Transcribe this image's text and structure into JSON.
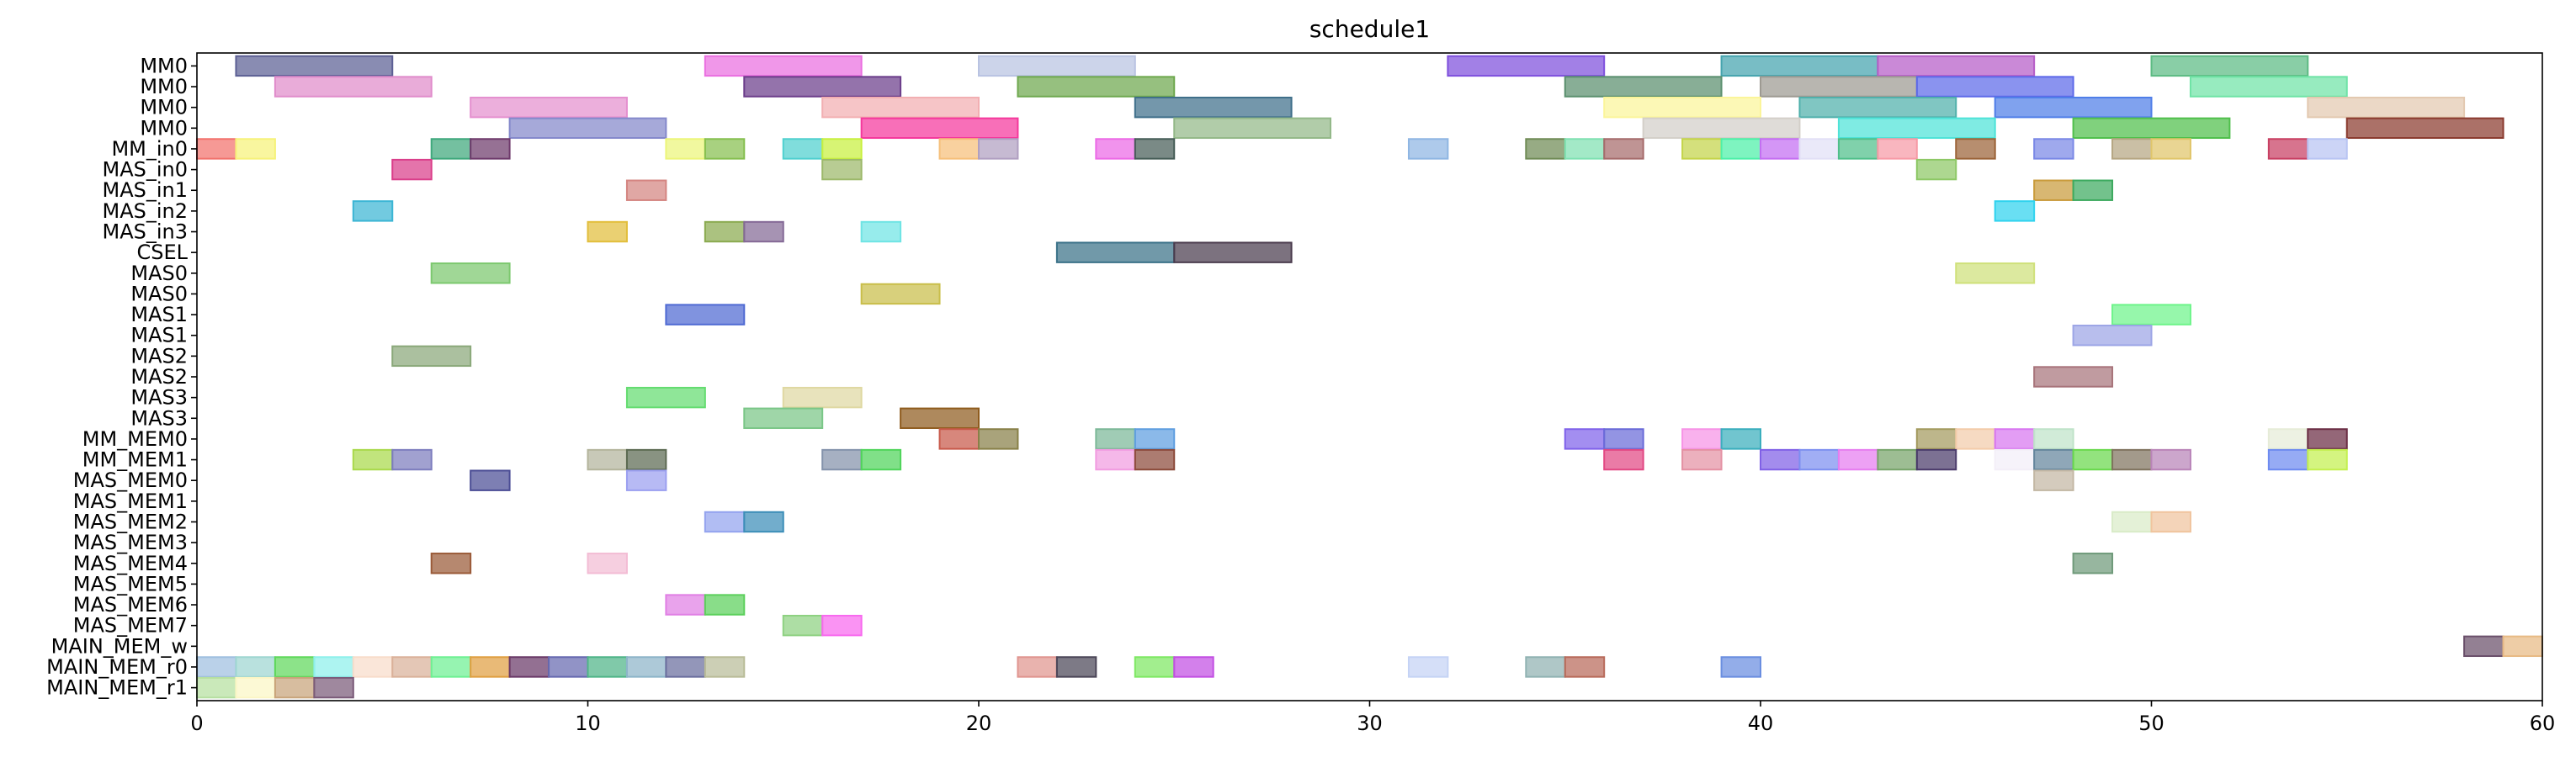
{
  "chart_data": {
    "type": "gantt",
    "title": "schedule1",
    "xlim": [
      0,
      60
    ],
    "xticks": [
      0,
      10,
      20,
      30,
      40,
      50,
      60
    ],
    "grid": false,
    "rows": [
      "MM0",
      "MM0",
      "MM0",
      "MM0",
      "MM_in0",
      "MAS_in0",
      "MAS_in1",
      "MAS_in2",
      "MAS_in3",
      "CSEL",
      "MAS0",
      "MAS0",
      "MAS1",
      "MAS1",
      "MAS2",
      "MAS2",
      "MAS3",
      "MAS3",
      "MM_MEM0",
      "MM_MEM1",
      "MAS_MEM0",
      "MAS_MEM1",
      "MAS_MEM2",
      "MAS_MEM3",
      "MAS_MEM4",
      "MAS_MEM5",
      "MAS_MEM6",
      "MAS_MEM7",
      "MAIN_MEM_w",
      "MAIN_MEM_r0",
      "MAIN_MEM_r1"
    ],
    "tasks": [
      {
        "row": 0,
        "start": 1,
        "end": 5,
        "color": "#5c5f94"
      },
      {
        "row": 0,
        "start": 13,
        "end": 17,
        "color": "#ea6fe0"
      },
      {
        "row": 0,
        "start": 20,
        "end": 24,
        "color": "#b9c3e2"
      },
      {
        "row": 0,
        "start": 32,
        "end": 36,
        "color": "#7e4fdd"
      },
      {
        "row": 0,
        "start": 39,
        "end": 43,
        "color": "#44a4ae"
      },
      {
        "row": 0,
        "start": 43,
        "end": 47,
        "color": "#b65cc7"
      },
      {
        "row": 0,
        "start": 50,
        "end": 54,
        "color": "#5cbb83"
      },
      {
        "row": 1,
        "start": 2,
        "end": 6,
        "color": "#e08ccb"
      },
      {
        "row": 1,
        "start": 14,
        "end": 18,
        "color": "#6b3d8a"
      },
      {
        "row": 1,
        "start": 21,
        "end": 25,
        "color": "#6ea84e"
      },
      {
        "row": 1,
        "start": 35,
        "end": 39,
        "color": "#5a8f6e"
      },
      {
        "row": 1,
        "start": 40,
        "end": 44,
        "color": "#9d9a92"
      },
      {
        "row": 1,
        "start": 44,
        "end": 48,
        "color": "#5d69e9"
      },
      {
        "row": 1,
        "start": 51,
        "end": 55,
        "color": "#6fe3a6"
      },
      {
        "row": 2,
        "start": 7,
        "end": 11,
        "color": "#e590cf"
      },
      {
        "row": 2,
        "start": 16,
        "end": 20,
        "color": "#f2afb2"
      },
      {
        "row": 2,
        "start": 24,
        "end": 28,
        "color": "#3f6f8a"
      },
      {
        "row": 2,
        "start": 36,
        "end": 40,
        "color": "#fbf59a"
      },
      {
        "row": 2,
        "start": 41,
        "end": 45,
        "color": "#4fb0ab"
      },
      {
        "row": 2,
        "start": 46,
        "end": 50,
        "color": "#4f7ee8"
      },
      {
        "row": 2,
        "start": 54,
        "end": 58,
        "color": "#e3c9b0"
      },
      {
        "row": 3,
        "start": 8,
        "end": 12,
        "color": "#8488cb"
      },
      {
        "row": 3,
        "start": 17,
        "end": 21,
        "color": "#f5389c"
      },
      {
        "row": 3,
        "start": 25,
        "end": 29,
        "color": "#93b888"
      },
      {
        "row": 3,
        "start": 37,
        "end": 41,
        "color": "#d3cfc9"
      },
      {
        "row": 3,
        "start": 42,
        "end": 46,
        "color": "#4ee3d8"
      },
      {
        "row": 3,
        "start": 48,
        "end": 52,
        "color": "#4fbf4b"
      },
      {
        "row": 3,
        "start": 55,
        "end": 59,
        "color": "#8a3a2e"
      },
      {
        "row": 4,
        "start": 0,
        "end": 1,
        "color": "#f2726c"
      },
      {
        "row": 4,
        "start": 1,
        "end": 2,
        "color": "#f6f27a"
      },
      {
        "row": 4,
        "start": 6,
        "end": 7,
        "color": "#3ea87c"
      },
      {
        "row": 4,
        "start": 7,
        "end": 8,
        "color": "#6e3a6b"
      },
      {
        "row": 4,
        "start": 12,
        "end": 13,
        "color": "#ecf57a"
      },
      {
        "row": 4,
        "start": 13,
        "end": 14,
        "color": "#86bf4f"
      },
      {
        "row": 4,
        "start": 15,
        "end": 16,
        "color": "#4fd0cf"
      },
      {
        "row": 4,
        "start": 16,
        "end": 17,
        "color": "#c8f03f"
      },
      {
        "row": 4,
        "start": 19,
        "end": 20,
        "color": "#f6bf7a"
      },
      {
        "row": 4,
        "start": 20,
        "end": 21,
        "color": "#b09fc1"
      },
      {
        "row": 4,
        "start": 23,
        "end": 24,
        "color": "#ec6ae6"
      },
      {
        "row": 4,
        "start": 24,
        "end": 25,
        "color": "#465d57"
      },
      {
        "row": 4,
        "start": 31,
        "end": 32,
        "color": "#8fb6e3"
      },
      {
        "row": 4,
        "start": 34,
        "end": 35,
        "color": "#6f8b55"
      },
      {
        "row": 4,
        "start": 35,
        "end": 36,
        "color": "#7fe1b1"
      },
      {
        "row": 4,
        "start": 36,
        "end": 37,
        "color": "#a66b6b"
      },
      {
        "row": 4,
        "start": 38,
        "end": 39,
        "color": "#c4d449"
      },
      {
        "row": 4,
        "start": 39,
        "end": 40,
        "color": "#4cf0a8"
      },
      {
        "row": 4,
        "start": 40,
        "end": 41,
        "color": "#c46ef2"
      },
      {
        "row": 4,
        "start": 41,
        "end": 42,
        "color": "#e2e0f6"
      },
      {
        "row": 4,
        "start": 42,
        "end": 43,
        "color": "#4fbf8a"
      },
      {
        "row": 4,
        "start": 43,
        "end": 44,
        "color": "#f79aa6"
      },
      {
        "row": 4,
        "start": 45,
        "end": 46,
        "color": "#9b6338"
      },
      {
        "row": 4,
        "start": 47,
        "end": 48,
        "color": "#7a88e6"
      },
      {
        "row": 4,
        "start": 49,
        "end": 50,
        "color": "#b5a682"
      },
      {
        "row": 4,
        "start": 50,
        "end": 51,
        "color": "#e0c56a"
      },
      {
        "row": 4,
        "start": 53,
        "end": 54,
        "color": "#c83f62"
      },
      {
        "row": 4,
        "start": 54,
        "end": 55,
        "color": "#b8c4f3"
      },
      {
        "row": 5,
        "start": 5,
        "end": 6,
        "color": "#da3e8a"
      },
      {
        "row": 5,
        "start": 16,
        "end": 17,
        "color": "#9cb86a"
      },
      {
        "row": 5,
        "start": 44,
        "end": 45,
        "color": "#8dc865"
      },
      {
        "row": 6,
        "start": 11,
        "end": 12,
        "color": "#d48581"
      },
      {
        "row": 6,
        "start": 47,
        "end": 48,
        "color": "#c99b3b"
      },
      {
        "row": 6,
        "start": 48,
        "end": 49,
        "color": "#3daa5f"
      },
      {
        "row": 7,
        "start": 4,
        "end": 5,
        "color": "#3bb5d4"
      },
      {
        "row": 7,
        "start": 46,
        "end": 47,
        "color": "#2fd2ee"
      },
      {
        "row": 8,
        "start": 10,
        "end": 11,
        "color": "#e2be3b"
      },
      {
        "row": 8,
        "start": 13,
        "end": 14,
        "color": "#8aaa4f"
      },
      {
        "row": 8,
        "start": 14,
        "end": 15,
        "color": "#846996"
      },
      {
        "row": 8,
        "start": 17,
        "end": 18,
        "color": "#6fe4e4"
      },
      {
        "row": 9,
        "start": 22,
        "end": 25,
        "color": "#3a7188"
      },
      {
        "row": 9,
        "start": 25,
        "end": 28,
        "color": "#4a3b4d"
      },
      {
        "row": 10,
        "start": 6,
        "end": 8,
        "color": "#7cc86e"
      },
      {
        "row": 10,
        "start": 45,
        "end": 47,
        "color": "#cfe07a"
      },
      {
        "row": 11,
        "start": 17,
        "end": 19,
        "color": "#c9be4a"
      },
      {
        "row": 12,
        "start": 12,
        "end": 14,
        "color": "#4f6ad3"
      },
      {
        "row": 12,
        "start": 49,
        "end": 51,
        "color": "#6ef48a"
      },
      {
        "row": 13,
        "start": 48,
        "end": 50,
        "color": "#9ca5e6"
      },
      {
        "row": 14,
        "start": 5,
        "end": 7,
        "color": "#8aa87a"
      },
      {
        "row": 15,
        "start": 47,
        "end": 49,
        "color": "#a8747b"
      },
      {
        "row": 16,
        "start": 11,
        "end": 13,
        "color": "#64dc70"
      },
      {
        "row": 16,
        "start": 15,
        "end": 17,
        "color": "#dfd8a2"
      },
      {
        "row": 17,
        "start": 14,
        "end": 16,
        "color": "#7ac687"
      },
      {
        "row": 17,
        "start": 18,
        "end": 20,
        "color": "#8f5c1e"
      },
      {
        "row": 18,
        "start": 19,
        "end": 20,
        "color": "#c8594a"
      },
      {
        "row": 18,
        "start": 20,
        "end": 21,
        "color": "#888048"
      },
      {
        "row": 18,
        "start": 23,
        "end": 24,
        "color": "#7cb898"
      },
      {
        "row": 18,
        "start": 24,
        "end": 25,
        "color": "#5e9ee0"
      },
      {
        "row": 18,
        "start": 35,
        "end": 36,
        "color": "#8062ea"
      },
      {
        "row": 18,
        "start": 36,
        "end": 37,
        "color": "#6a6bd8"
      },
      {
        "row": 18,
        "start": 38,
        "end": 39,
        "color": "#f793e6"
      },
      {
        "row": 18,
        "start": 39,
        "end": 40,
        "color": "#3aaebd"
      },
      {
        "row": 18,
        "start": 44,
        "end": 45,
        "color": "#a39a5e"
      },
      {
        "row": 18,
        "start": 45,
        "end": 46,
        "color": "#f3ccaa"
      },
      {
        "row": 18,
        "start": 46,
        "end": 47,
        "color": "#d877f0"
      },
      {
        "row": 18,
        "start": 47,
        "end": 48,
        "color": "#bfe3c9"
      },
      {
        "row": 18,
        "start": 53,
        "end": 54,
        "color": "#e6ecd8"
      },
      {
        "row": 18,
        "start": 54,
        "end": 55,
        "color": "#6b2d44"
      },
      {
        "row": 19,
        "start": 4,
        "end": 5,
        "color": "#a9d94b"
      },
      {
        "row": 19,
        "start": 5,
        "end": 6,
        "color": "#7d7dbe"
      },
      {
        "row": 19,
        "start": 10,
        "end": 11,
        "color": "#b3b49c"
      },
      {
        "row": 19,
        "start": 11,
        "end": 12,
        "color": "#5c6a52"
      },
      {
        "row": 19,
        "start": 16,
        "end": 17,
        "color": "#8392ab"
      },
      {
        "row": 19,
        "start": 17,
        "end": 18,
        "color": "#4fd45a"
      },
      {
        "row": 19,
        "start": 23,
        "end": 24,
        "color": "#f19ce0"
      },
      {
        "row": 19,
        "start": 24,
        "end": 25,
        "color": "#8c4a3a"
      },
      {
        "row": 19,
        "start": 36,
        "end": 37,
        "color": "#e24883"
      },
      {
        "row": 19,
        "start": 38,
        "end": 39,
        "color": "#e491a3"
      },
      {
        "row": 19,
        "start": 40,
        "end": 41,
        "color": "#8060e6"
      },
      {
        "row": 19,
        "start": 41,
        "end": 42,
        "color": "#7d8ff0"
      },
      {
        "row": 19,
        "start": 42,
        "end": 43,
        "color": "#e67df0"
      },
      {
        "row": 19,
        "start": 43,
        "end": 44,
        "color": "#77a46a"
      },
      {
        "row": 19,
        "start": 44,
        "end": 45,
        "color": "#4a3a6a"
      },
      {
        "row": 19,
        "start": 46,
        "end": 47,
        "color": "#f3eff8"
      },
      {
        "row": 19,
        "start": 47,
        "end": 48,
        "color": "#64859c"
      },
      {
        "row": 19,
        "start": 48,
        "end": 49,
        "color": "#69d84c"
      },
      {
        "row": 19,
        "start": 49,
        "end": 50,
        "color": "#7f735e"
      },
      {
        "row": 19,
        "start": 50,
        "end": 51,
        "color": "#b984b8"
      },
      {
        "row": 19,
        "start": 53,
        "end": 54,
        "color": "#6d8af0"
      },
      {
        "row": 19,
        "start": 54,
        "end": 55,
        "color": "#c3f04f"
      },
      {
        "row": 20,
        "start": 7,
        "end": 8,
        "color": "#4b4d95"
      },
      {
        "row": 20,
        "start": 11,
        "end": 12,
        "color": "#9b9ff0"
      },
      {
        "row": 20,
        "start": 47,
        "end": 48,
        "color": "#c3b7a4"
      },
      {
        "row": 22,
        "start": 13,
        "end": 14,
        "color": "#93a3ee"
      },
      {
        "row": 22,
        "start": 14,
        "end": 15,
        "color": "#3c8eb8"
      },
      {
        "row": 22,
        "start": 49,
        "end": 50,
        "color": "#d9ebc8"
      },
      {
        "row": 22,
        "start": 50,
        "end": 51,
        "color": "#f0c49e"
      },
      {
        "row": 24,
        "start": 6,
        "end": 7,
        "color": "#9a5a38"
      },
      {
        "row": 24,
        "start": 10,
        "end": 11,
        "color": "#f3bcd4"
      },
      {
        "row": 24,
        "start": 48,
        "end": 49,
        "color": "#6f9a7a"
      },
      {
        "row": 26,
        "start": 12,
        "end": 13,
        "color": "#e07fe4"
      },
      {
        "row": 26,
        "start": 13,
        "end": 14,
        "color": "#5cd05c"
      },
      {
        "row": 27,
        "start": 15,
        "end": 16,
        "color": "#8ed181"
      },
      {
        "row": 27,
        "start": 16,
        "end": 17,
        "color": "#f869ef"
      },
      {
        "row": 28,
        "start": 58,
        "end": 59,
        "color": "#6a4f6a"
      },
      {
        "row": 28,
        "start": 59,
        "end": 60,
        "color": "#e8ba84"
      },
      {
        "row": 29,
        "start": 0,
        "end": 1,
        "color": "#9fbfe0"
      },
      {
        "row": 29,
        "start": 1,
        "end": 2,
        "color": "#9ed6d1"
      },
      {
        "row": 29,
        "start": 2,
        "end": 3,
        "color": "#5fd85b"
      },
      {
        "row": 29,
        "start": 3,
        "end": 4,
        "color": "#8ef0eb"
      },
      {
        "row": 29,
        "start": 4,
        "end": 5,
        "color": "#f8dcca"
      },
      {
        "row": 29,
        "start": 5,
        "end": 6,
        "color": "#dab19a"
      },
      {
        "row": 29,
        "start": 6,
        "end": 7,
        "color": "#6ef093"
      },
      {
        "row": 29,
        "start": 7,
        "end": 8,
        "color": "#e09f42"
      },
      {
        "row": 29,
        "start": 8,
        "end": 9,
        "color": "#6a3968"
      },
      {
        "row": 29,
        "start": 9,
        "end": 10,
        "color": "#6669b0"
      },
      {
        "row": 29,
        "start": 10,
        "end": 11,
        "color": "#4fb488"
      },
      {
        "row": 29,
        "start": 11,
        "end": 12,
        "color": "#8db4c9"
      },
      {
        "row": 29,
        "start": 12,
        "end": 13,
        "color": "#6a6e9e"
      },
      {
        "row": 29,
        "start": 13,
        "end": 14,
        "color": "#b9bc98"
      },
      {
        "row": 29,
        "start": 21,
        "end": 22,
        "color": "#e0958f"
      },
      {
        "row": 29,
        "start": 22,
        "end": 23,
        "color": "#4b4658"
      },
      {
        "row": 29,
        "start": 24,
        "end": 25,
        "color": "#7ee863"
      },
      {
        "row": 29,
        "start": 25,
        "end": 26,
        "color": "#c24fe3"
      },
      {
        "row": 29,
        "start": 31,
        "end": 32,
        "color": "#c5d3f5"
      },
      {
        "row": 29,
        "start": 34,
        "end": 35,
        "color": "#90b2b2"
      },
      {
        "row": 29,
        "start": 35,
        "end": 36,
        "color": "#b86a5a"
      },
      {
        "row": 29,
        "start": 39,
        "end": 40,
        "color": "#6a8ee0"
      },
      {
        "row": 30,
        "start": 0,
        "end": 1,
        "color": "#b6e0a0"
      },
      {
        "row": 30,
        "start": 1,
        "end": 2,
        "color": "#fbf6c5"
      },
      {
        "row": 30,
        "start": 2,
        "end": 3,
        "color": "#c8a47a"
      },
      {
        "row": 30,
        "start": 3,
        "end": 4,
        "color": "#7a5a78"
      }
    ]
  }
}
